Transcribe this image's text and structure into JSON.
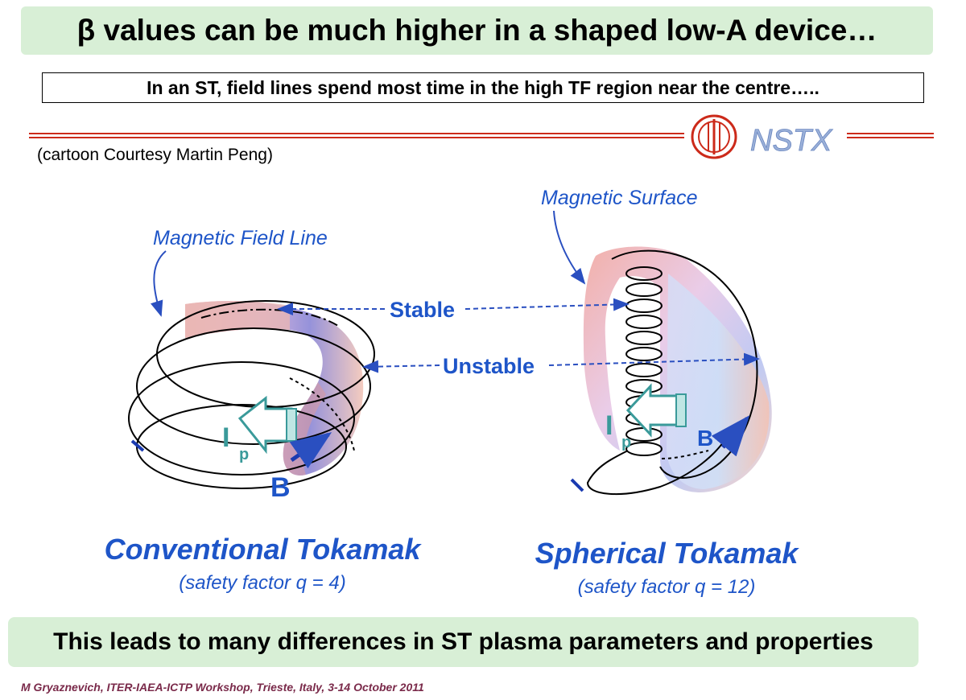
{
  "title": "β values can be much higher in a shaped low-A device…",
  "subtitle": "In an ST, field lines spend most time in the high TF region near the centre…..",
  "credit": "(cartoon Courtesy Martin Peng)",
  "logo_text": "NSTX",
  "diagram": {
    "magnetic_field_line_label": "Magnetic Field Line",
    "magnetic_surface_label": "Magnetic Surface",
    "stable_label": "Stable",
    "unstable_label": "Unstable",
    "ip_label": "I",
    "ip_sub": "p",
    "b_label": "B",
    "conventional": {
      "name": "Conventional Tokamak",
      "safety": "(safety factor q = 4)"
    },
    "spherical": {
      "name": "Spherical Tokamak",
      "safety": "(safety factor q = 12)"
    }
  },
  "conclusion": "This leads to many differences in ST plasma parameters and properties",
  "footer": "M Gryaznevich, ITER-IAEA-ICTP Workshop, Trieste, Italy, 3-14 October 2011",
  "colors": {
    "title_bg": "#d8efd6",
    "accent_red": "#cc2a1a",
    "label_blue": "#1e55c8",
    "teal": "#3a9a9a",
    "footer": "#7a2a4a"
  }
}
